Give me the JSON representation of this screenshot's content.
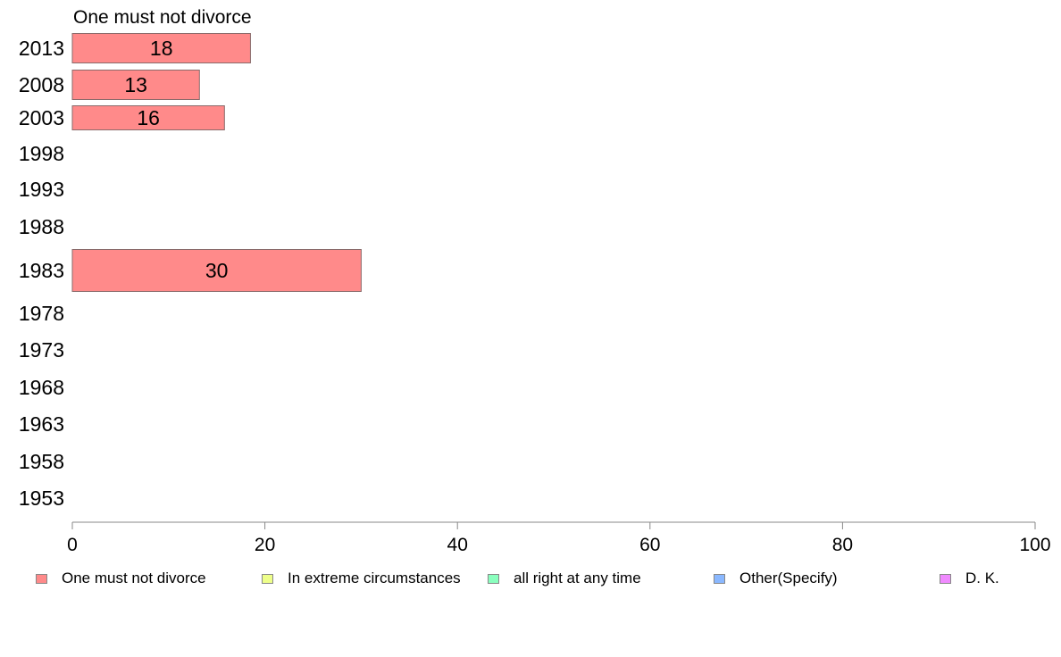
{
  "chart_data": {
    "type": "bar",
    "orientation": "horizontal",
    "title": "One must not divorce",
    "categories": [
      "2013",
      "2008",
      "2003",
      "1998",
      "1993",
      "1988",
      "1983",
      "1978",
      "1973",
      "1968",
      "1963",
      "1958",
      "1953"
    ],
    "series": [
      {
        "name": "One must not divorce",
        "color": "#ff8a8a",
        "values": [
          18.5,
          13.2,
          15.8,
          null,
          null,
          null,
          30,
          null,
          null,
          null,
          null,
          null,
          null
        ],
        "labels": [
          "18",
          "13",
          "16",
          "",
          "",
          "",
          "30",
          "",
          "",
          "",
          "",
          "",
          ""
        ]
      }
    ],
    "xlim": [
      0,
      100
    ],
    "xticks": [
      "0",
      "20",
      "40",
      "60",
      "80",
      "100"
    ],
    "grid": false,
    "legend_position": "bottom",
    "legend": [
      {
        "label": "One must not divorce",
        "color": "#ff8a8a"
      },
      {
        "label": "In extreme circumstances",
        "color": "#eeff8a"
      },
      {
        "label": "all right at any time",
        "color": "#8affbe"
      },
      {
        "label": "Other(Specify)",
        "color": "#8ab8ff"
      },
      {
        "label": "D. K.",
        "color": "#f08aff"
      }
    ]
  }
}
